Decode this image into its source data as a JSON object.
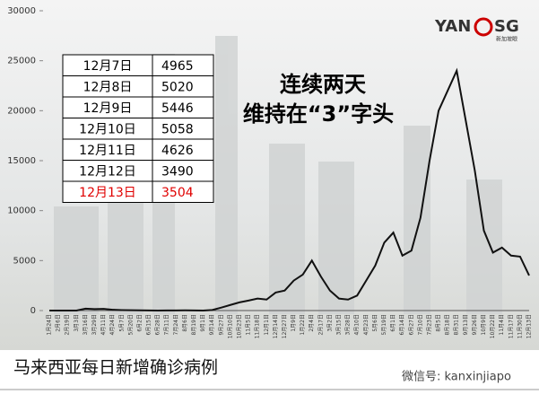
{
  "chart_data": {
    "type": "line",
    "title": "马来西亚每日新增确诊病例",
    "annotation": [
      "连续两天",
      "维持在“3”字头"
    ],
    "logo": [
      "YAN",
      "SG",
      "新加坡眼"
    ],
    "footer": "微信号: kanxinjiapo",
    "color": "#111111",
    "ylim": [
      0,
      30000
    ],
    "yticks": [
      0,
      5000,
      10000,
      15000,
      20000,
      25000,
      30000
    ],
    "categories": [
      "1月24日",
      "2月6日",
      "2月19日",
      "3月3日",
      "3月16日",
      "3月29日",
      "4月11日",
      "4月24日",
      "5月7日",
      "5月20日",
      "6月2日",
      "6月15日",
      "6月28日",
      "7月11日",
      "7月24日",
      "8月6日",
      "8月19日",
      "9月1日",
      "9月14日",
      "9月27日",
      "10月10日",
      "10月23日",
      "11月5日",
      "11月18日",
      "12月1日",
      "12月14日",
      "12月27日",
      "1月9日",
      "1月22日",
      "2月4日",
      "2月17日",
      "3月2日",
      "3月15日",
      "3月28日",
      "4月10日",
      "4月23日",
      "5月6日",
      "5月19日",
      "6月1日",
      "6月14日",
      "6月27日",
      "7月10日",
      "7月23日",
      "8月5日",
      "8月18日",
      "8月31日",
      "9月13日",
      "9月26日",
      "10月9日",
      "10月22日",
      "11月4日",
      "11月17日",
      "11月30日",
      "12月13日"
    ],
    "values": [
      0,
      0,
      0,
      0,
      190,
      150,
      170,
      80,
      50,
      30,
      20,
      10,
      5,
      10,
      15,
      20,
      10,
      5,
      60,
      300,
      560,
      820,
      1000,
      1200,
      1100,
      1800,
      2000,
      3000,
      3600,
      5000,
      3400,
      2000,
      1200,
      1100,
      1500,
      3000,
      4500,
      6800,
      7800,
      5500,
      6000,
      9300,
      15000,
      20000,
      22000,
      24000,
      19000,
      14000,
      8000,
      5800,
      6300,
      5500,
      5400,
      3504
    ],
    "table": [
      {
        "date": "12月7日",
        "cases": 4965
      },
      {
        "date": "12月8日",
        "cases": 5020
      },
      {
        "date": "12月9日",
        "cases": 5446
      },
      {
        "date": "12月10日",
        "cases": 5058
      },
      {
        "date": "12月11日",
        "cases": 4626
      },
      {
        "date": "12月12日",
        "cases": 3490
      },
      {
        "date": "12月13日",
        "cases": 3504,
        "color": "#e00000"
      }
    ]
  }
}
